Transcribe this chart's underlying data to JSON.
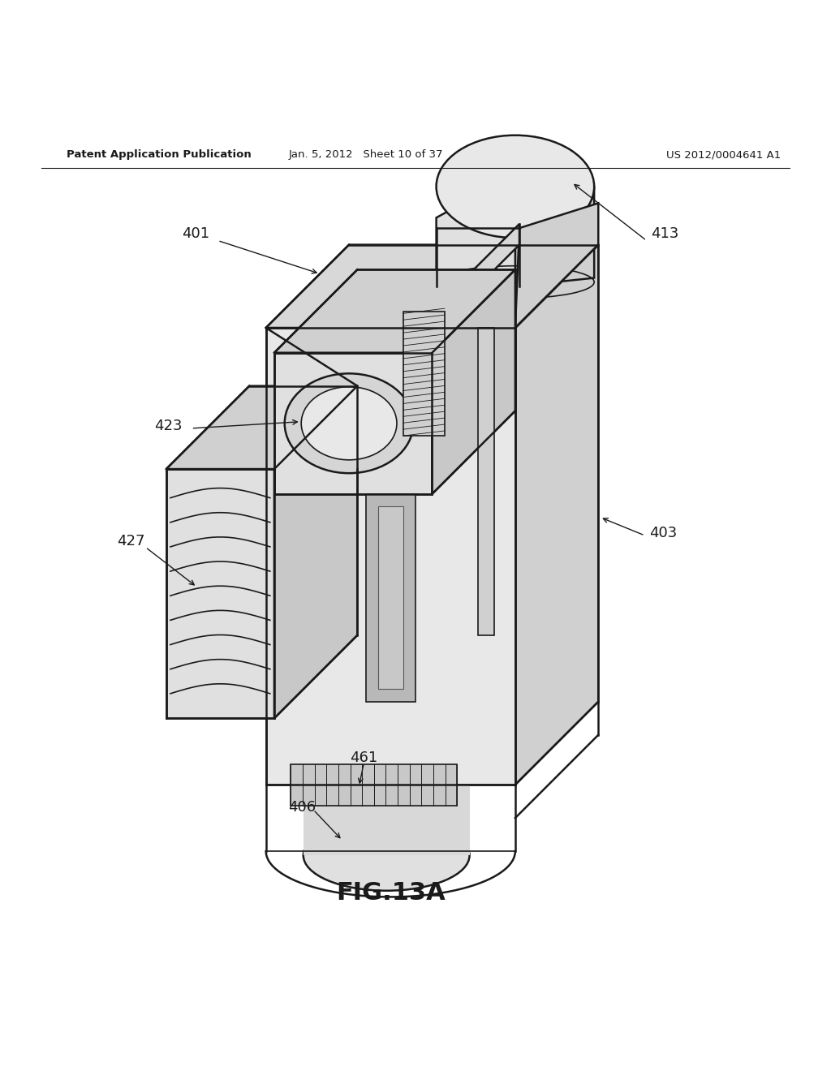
{
  "bg_color": "#ffffff",
  "header_left": "Patent Application Publication",
  "header_mid": "Jan. 5, 2012   Sheet 10 of 37",
  "header_right": "US 2012/0004641 A1",
  "fig_label": "FIG.13A",
  "color_dark": "#1a1a1a",
  "color_mid": "#555555",
  "lw_main": 1.8,
  "lw_thin": 1.2
}
